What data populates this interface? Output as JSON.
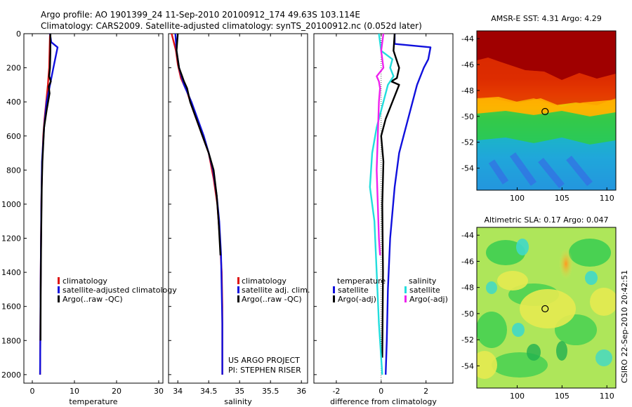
{
  "header": {
    "line1": "Argo profile: AO 1901399_24 11-Sep-2010 20100912_174 49.63S 103.114E",
    "line2": "Climatology: CARS2009. Satellite-adjusted climatology: synTS_20100912.nc (0.052d later)"
  },
  "side_label": "CSIRO 22-Sep-2010 20:42:51",
  "project": {
    "line1": "US ARGO PROJECT",
    "line2": "PI: STEPHEN RISER"
  },
  "colors": {
    "red": "#dd1111",
    "blue": "#1010dd",
    "black": "#000000",
    "cyan": "#22dddd",
    "magenta": "#ee22ee"
  },
  "chart_data": [
    {
      "id": "temperature",
      "type": "line",
      "xlabel": "temperature",
      "ylabel": "",
      "xlim": [
        -2,
        31
      ],
      "ylim": [
        0,
        2050
      ],
      "xticks": [
        0,
        10,
        20,
        30
      ],
      "yticks": [
        0,
        200,
        400,
        600,
        800,
        1000,
        1200,
        1400,
        1600,
        1800,
        2000
      ],
      "legend": {
        "placement": "center-right",
        "items": [
          {
            "label": "climatology",
            "color": "#dd1111"
          },
          {
            "label": "satellite-adjusted climatology",
            "color": "#1010dd"
          },
          {
            "label": "Argo(..raw -QC)",
            "color": "#000000"
          }
        ]
      },
      "series": [
        {
          "name": "climatology",
          "color": "#dd1111",
          "x": [
            4.2,
            4.1,
            4.0,
            3.7,
            3.3,
            2.9,
            2.6,
            2.3,
            2.15,
            2.0,
            1.9,
            1.85
          ],
          "y": [
            0,
            100,
            200,
            300,
            400,
            500,
            600,
            800,
            1000,
            1400,
            1800,
            2000
          ]
        },
        {
          "name": "satellite-adjusted climatology",
          "color": "#1010dd",
          "x": [
            4.2,
            4.5,
            6.0,
            5.0,
            4.2,
            3.4,
            2.8,
            2.3,
            2.15,
            2.0,
            1.9,
            1.85
          ],
          "y": [
            0,
            50,
            80,
            200,
            300,
            400,
            550,
            750,
            1000,
            1400,
            1800,
            2000
          ]
        },
        {
          "name": "Argo(..raw -QC)",
          "color": "#000000",
          "x": [
            4.3,
            4.3,
            4.2,
            4.0,
            4.4,
            3.9,
            4.1,
            3.4,
            2.8,
            2.6,
            2.4,
            2.25,
            2.1,
            2.0,
            1.95
          ],
          "y": [
            0,
            100,
            200,
            250,
            280,
            310,
            350,
            450,
            550,
            650,
            750,
            900,
            1200,
            1500,
            1800
          ]
        }
      ]
    },
    {
      "id": "salinity",
      "type": "line",
      "xlabel": "salinity",
      "ylabel": "",
      "xlim": [
        33.85,
        36.1
      ],
      "ylim": [
        0,
        2050
      ],
      "xticks": [
        34,
        34.5,
        35,
        35.5,
        36
      ],
      "legend": {
        "placement": "center-right",
        "items": [
          {
            "label": "climatology",
            "color": "#dd1111"
          },
          {
            "label": "satellite adj. clim.",
            "color": "#1010dd"
          },
          {
            "label": "Argo(..raw -QC)",
            "color": "#000000"
          }
        ]
      },
      "series": [
        {
          "name": "climatology",
          "color": "#dd1111",
          "x": [
            33.9,
            33.97,
            34.0,
            34.05,
            34.15,
            34.22,
            34.3,
            34.4,
            34.5,
            34.58,
            34.64,
            34.68,
            34.71,
            34.72,
            34.72
          ],
          "y": [
            0,
            100,
            180,
            260,
            340,
            420,
            500,
            600,
            700,
            850,
            1000,
            1200,
            1400,
            1600,
            2000
          ]
        },
        {
          "name": "satellite adj. clim.",
          "color": "#1010dd",
          "x": [
            33.96,
            33.98,
            34.02,
            34.1,
            34.22,
            34.32,
            34.42,
            34.5,
            34.57,
            34.63,
            34.67,
            34.7,
            34.71,
            34.72,
            34.72
          ],
          "y": [
            0,
            100,
            200,
            300,
            400,
            500,
            600,
            700,
            800,
            950,
            1100,
            1300,
            1500,
            1700,
            2000
          ]
        },
        {
          "name": "Argo(..raw -QC)",
          "color": "#000000",
          "x": [
            34.0,
            33.98,
            34.02,
            34.07,
            34.1,
            34.15,
            34.2,
            34.3,
            34.4,
            34.5,
            34.58,
            34.63,
            34.66,
            34.69
          ],
          "y": [
            0,
            100,
            200,
            250,
            280,
            320,
            400,
            500,
            600,
            700,
            800,
            950,
            1100,
            1300
          ]
        }
      ]
    },
    {
      "id": "difference",
      "type": "line",
      "xlabel": "difference from climatology",
      "ylabel": "",
      "xlim": [
        -3,
        3.2
      ],
      "ylim": [
        0,
        2050
      ],
      "xticks": [
        -2,
        0,
        2
      ],
      "legend": {
        "placement": "center",
        "groups": [
          {
            "title": "temperature",
            "items": [
              {
                "label": "satellite",
                "color": "#1010dd"
              },
              {
                "label": "Argo(-adj)",
                "color": "#000000"
              }
            ]
          },
          {
            "title": "salinity",
            "items": [
              {
                "label": "satellite",
                "color": "#22dddd"
              },
              {
                "label": "Argo(-adj)",
                "color": "#ee22ee"
              }
            ]
          }
        ]
      },
      "series": [
        {
          "name": "temperature satellite",
          "color": "#1010dd",
          "x": [
            0.6,
            0.6,
            2.2,
            2.1,
            1.9,
            1.6,
            1.4,
            1.2,
            1.0,
            0.8,
            0.6,
            0.4,
            0.3,
            0.25,
            0.2
          ],
          "y": [
            0,
            60,
            80,
            150,
            200,
            300,
            400,
            500,
            600,
            700,
            900,
            1200,
            1500,
            1800,
            2000
          ]
        },
        {
          "name": "temperature Argo(-adj)",
          "color": "#000000",
          "x": [
            0.6,
            0.55,
            0.8,
            0.7,
            0.45,
            0.8,
            0.5,
            0.2,
            0.0,
            0.1,
            0.05,
            0.08,
            0.05
          ],
          "y": [
            0,
            100,
            200,
            260,
            280,
            300,
            400,
            500,
            600,
            750,
            1000,
            1400,
            1900
          ]
        },
        {
          "name": "salinity satellite",
          "color": "#22dddd",
          "x": [
            -0.1,
            0.0,
            0.5,
            0.4,
            0.55,
            0.3,
            0.1,
            -0.2,
            -0.4,
            -0.5,
            -0.3,
            -0.2,
            -0.1,
            0.0,
            0.05
          ],
          "y": [
            0,
            100,
            150,
            200,
            250,
            300,
            400,
            550,
            700,
            900,
            1100,
            1400,
            1700,
            1900,
            2000
          ]
        },
        {
          "name": "salinity Argo(-adj)",
          "color": "#ee22ee",
          "x": [
            0.1,
            0.0,
            0.1,
            -0.2,
            -0.1,
            -0.05,
            -0.1,
            -0.15,
            -0.2,
            -0.15,
            -0.1,
            -0.05
          ],
          "y": [
            0,
            100,
            200,
            250,
            280,
            320,
            400,
            600,
            800,
            1000,
            1200,
            1300
          ]
        }
      ]
    },
    {
      "id": "sst_map",
      "type": "heatmap",
      "title": "AMSR-E SST: 4.31 Argo: 4.29",
      "xlim": [
        95.5,
        111
      ],
      "ylim": [
        -55.7,
        -43.4
      ],
      "xticks": [
        100,
        105,
        110
      ],
      "yticks": [
        -44,
        -46,
        -48,
        -50,
        -52,
        -54
      ],
      "marker": {
        "x": 103.11,
        "y": -49.63
      }
    },
    {
      "id": "sla_map",
      "type": "heatmap",
      "title": "Altimetric SLA: 0.17 Argo: 0.047",
      "xlim": [
        95.5,
        111
      ],
      "ylim": [
        -55.7,
        -43.4
      ],
      "xticks": [
        100,
        105,
        110
      ],
      "yticks": [
        -44,
        -46,
        -48,
        -50,
        -52,
        -54
      ],
      "marker": {
        "x": 103.11,
        "y": -49.63
      }
    }
  ]
}
